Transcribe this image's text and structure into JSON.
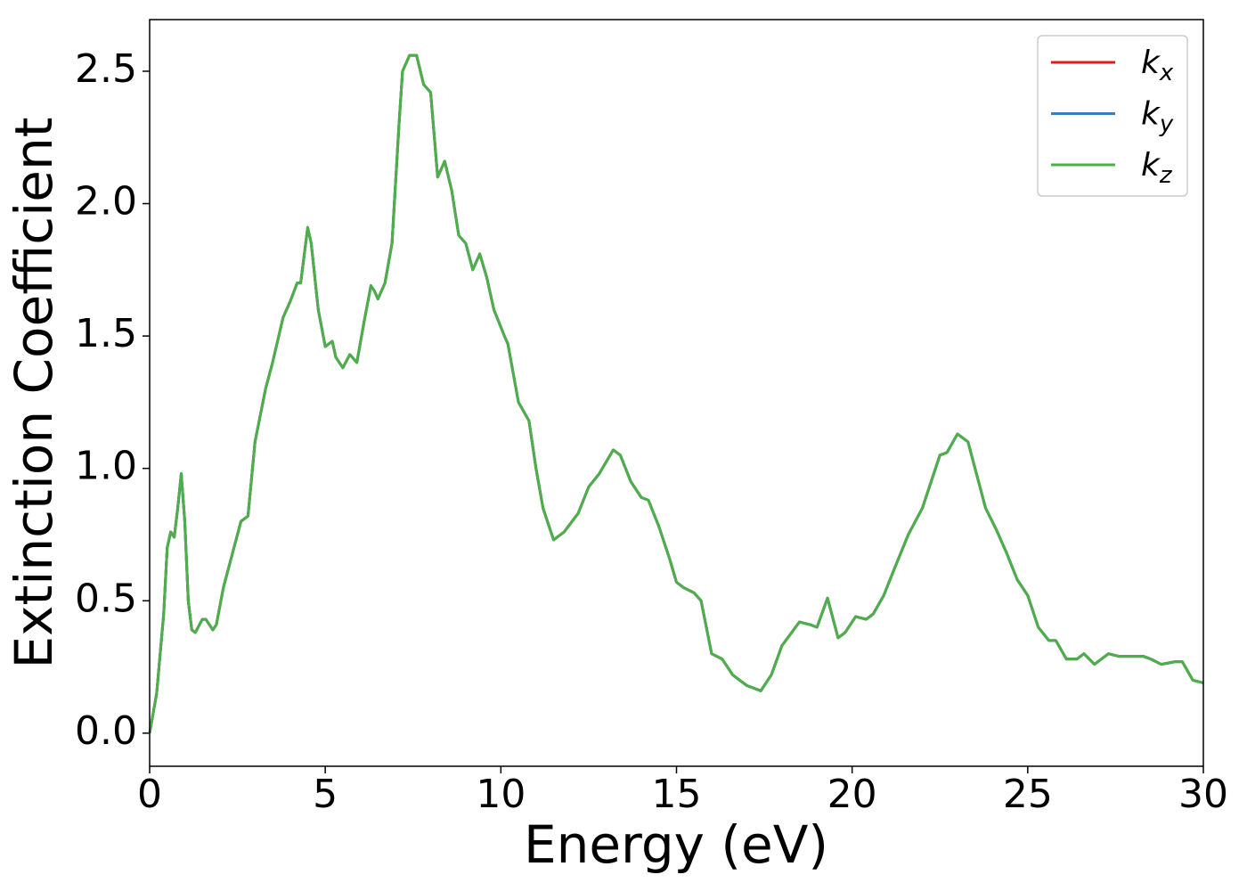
{
  "chart_data": {
    "type": "line",
    "xlabel": "Energy (eV)",
    "ylabel": "Extinction Coefficient",
    "x": [
      0,
      0.2,
      0.4,
      0.5,
      0.6,
      0.7,
      0.8,
      0.9,
      1.0,
      1.1,
      1.2,
      1.3,
      1.5,
      1.6,
      1.8,
      1.9,
      2.1,
      2.3,
      2.6,
      2.8,
      3.0,
      3.3,
      3.5,
      3.8,
      4.0,
      4.2,
      4.3,
      4.5,
      4.6,
      4.8,
      5.0,
      5.2,
      5.3,
      5.5,
      5.7,
      5.9,
      6.1,
      6.3,
      6.4,
      6.5,
      6.7,
      6.9,
      7.1,
      7.2,
      7.4,
      7.6,
      7.8,
      8.0,
      8.2,
      8.4,
      8.6,
      8.8,
      9.0,
      9.2,
      9.4,
      9.6,
      9.8,
      10.1,
      10.2,
      10.5,
      10.8,
      11.0,
      11.2,
      11.5,
      11.8,
      12.2,
      12.5,
      12.8,
      13.2,
      13.4,
      13.7,
      14.0,
      14.2,
      14.5,
      14.8,
      15.0,
      15.2,
      15.5,
      15.7,
      16.0,
      16.3,
      16.6,
      17.0,
      17.4,
      17.7,
      18.0,
      18.5,
      18.8,
      19.0,
      19.3,
      19.6,
      19.8,
      20.1,
      20.4,
      20.6,
      20.9,
      21.2,
      21.6,
      22.0,
      22.2,
      22.5,
      22.7,
      23.0,
      23.3,
      23.5,
      23.8,
      24.1,
      24.4,
      24.7,
      25.0,
      25.3,
      25.6,
      25.8,
      26.1,
      26.4,
      26.6,
      26.9,
      27.3,
      27.6,
      27.9,
      28.3,
      28.5,
      28.8,
      29.2,
      29.4,
      29.7,
      30
    ],
    "series": [
      {
        "name": "kx",
        "color": "#e41a1c",
        "values": [
          0,
          0.15,
          0.45,
          0.7,
          0.76,
          0.74,
          0.85,
          0.98,
          0.8,
          0.5,
          0.39,
          0.38,
          0.43,
          0.43,
          0.39,
          0.41,
          0.55,
          0.65,
          0.8,
          0.82,
          1.1,
          1.3,
          1.4,
          1.57,
          1.63,
          1.7,
          1.7,
          1.91,
          1.85,
          1.6,
          1.46,
          1.48,
          1.42,
          1.38,
          1.43,
          1.4,
          1.55,
          1.69,
          1.67,
          1.64,
          1.7,
          1.85,
          2.3,
          2.5,
          2.56,
          2.56,
          2.45,
          2.42,
          2.1,
          2.16,
          2.05,
          1.88,
          1.85,
          1.75,
          1.81,
          1.72,
          1.6,
          1.5,
          1.47,
          1.25,
          1.18,
          1.0,
          0.85,
          0.73,
          0.76,
          0.83,
          0.93,
          0.98,
          1.07,
          1.05,
          0.95,
          0.89,
          0.88,
          0.78,
          0.66,
          0.57,
          0.55,
          0.53,
          0.5,
          0.3,
          0.28,
          0.22,
          0.18,
          0.16,
          0.22,
          0.33,
          0.42,
          0.41,
          0.4,
          0.51,
          0.36,
          0.38,
          0.44,
          0.43,
          0.45,
          0.52,
          0.62,
          0.75,
          0.85,
          0.93,
          1.05,
          1.06,
          1.13,
          1.1,
          1.0,
          0.85,
          0.77,
          0.68,
          0.58,
          0.52,
          0.4,
          0.35,
          0.35,
          0.28,
          0.28,
          0.3,
          0.26,
          0.3,
          0.29,
          0.29,
          0.29,
          0.28,
          0.26,
          0.27,
          0.27,
          0.2,
          0.19
        ]
      },
      {
        "name": "ky",
        "color": "#377eb8",
        "values": [
          0,
          0.15,
          0.45,
          0.7,
          0.76,
          0.74,
          0.85,
          0.98,
          0.8,
          0.5,
          0.39,
          0.38,
          0.43,
          0.43,
          0.39,
          0.41,
          0.55,
          0.65,
          0.8,
          0.82,
          1.1,
          1.3,
          1.4,
          1.57,
          1.63,
          1.7,
          1.7,
          1.91,
          1.85,
          1.6,
          1.46,
          1.48,
          1.42,
          1.38,
          1.43,
          1.4,
          1.55,
          1.69,
          1.67,
          1.64,
          1.7,
          1.85,
          2.3,
          2.5,
          2.56,
          2.56,
          2.45,
          2.42,
          2.1,
          2.16,
          2.05,
          1.88,
          1.85,
          1.75,
          1.81,
          1.72,
          1.6,
          1.5,
          1.47,
          1.25,
          1.18,
          1.0,
          0.85,
          0.73,
          0.76,
          0.83,
          0.93,
          0.98,
          1.07,
          1.05,
          0.95,
          0.89,
          0.88,
          0.78,
          0.66,
          0.57,
          0.55,
          0.53,
          0.5,
          0.3,
          0.28,
          0.22,
          0.18,
          0.16,
          0.22,
          0.33,
          0.42,
          0.41,
          0.4,
          0.51,
          0.36,
          0.38,
          0.44,
          0.43,
          0.45,
          0.52,
          0.62,
          0.75,
          0.85,
          0.93,
          1.05,
          1.06,
          1.13,
          1.1,
          1.0,
          0.85,
          0.77,
          0.68,
          0.58,
          0.52,
          0.4,
          0.35,
          0.35,
          0.28,
          0.28,
          0.3,
          0.26,
          0.3,
          0.29,
          0.29,
          0.29,
          0.28,
          0.26,
          0.27,
          0.27,
          0.2,
          0.19
        ]
      },
      {
        "name": "kz",
        "color": "#4daf4a",
        "values": [
          0,
          0.15,
          0.45,
          0.7,
          0.76,
          0.74,
          0.85,
          0.98,
          0.8,
          0.5,
          0.39,
          0.38,
          0.43,
          0.43,
          0.39,
          0.41,
          0.55,
          0.65,
          0.8,
          0.82,
          1.1,
          1.3,
          1.4,
          1.57,
          1.63,
          1.7,
          1.7,
          1.91,
          1.85,
          1.6,
          1.46,
          1.48,
          1.42,
          1.38,
          1.43,
          1.4,
          1.55,
          1.69,
          1.67,
          1.64,
          1.7,
          1.85,
          2.3,
          2.5,
          2.56,
          2.56,
          2.45,
          2.42,
          2.1,
          2.16,
          2.05,
          1.88,
          1.85,
          1.75,
          1.81,
          1.72,
          1.6,
          1.5,
          1.47,
          1.25,
          1.18,
          1.0,
          0.85,
          0.73,
          0.76,
          0.83,
          0.93,
          0.98,
          1.07,
          1.05,
          0.95,
          0.89,
          0.88,
          0.78,
          0.66,
          0.57,
          0.55,
          0.53,
          0.5,
          0.3,
          0.28,
          0.22,
          0.18,
          0.16,
          0.22,
          0.33,
          0.42,
          0.41,
          0.4,
          0.51,
          0.36,
          0.38,
          0.44,
          0.43,
          0.45,
          0.52,
          0.62,
          0.75,
          0.85,
          0.93,
          1.05,
          1.06,
          1.13,
          1.1,
          1.0,
          0.85,
          0.77,
          0.68,
          0.58,
          0.52,
          0.4,
          0.35,
          0.35,
          0.28,
          0.28,
          0.3,
          0.26,
          0.3,
          0.29,
          0.29,
          0.29,
          0.28,
          0.26,
          0.27,
          0.27,
          0.2,
          0.19
        ]
      }
    ],
    "xlim": [
      0,
      30
    ],
    "xticks": [
      0,
      5,
      10,
      15,
      20,
      25,
      30
    ],
    "ylim": [
      -0.125,
      2.695
    ],
    "yticks": [
      {
        "value": 0,
        "label": "0.0"
      },
      0.5,
      {
        "value": 1,
        "label": "1.0"
      },
      1.5,
      {
        "value": 2,
        "label": "2.0"
      },
      2.5
    ],
    "grid": false,
    "legend": "upper right"
  }
}
